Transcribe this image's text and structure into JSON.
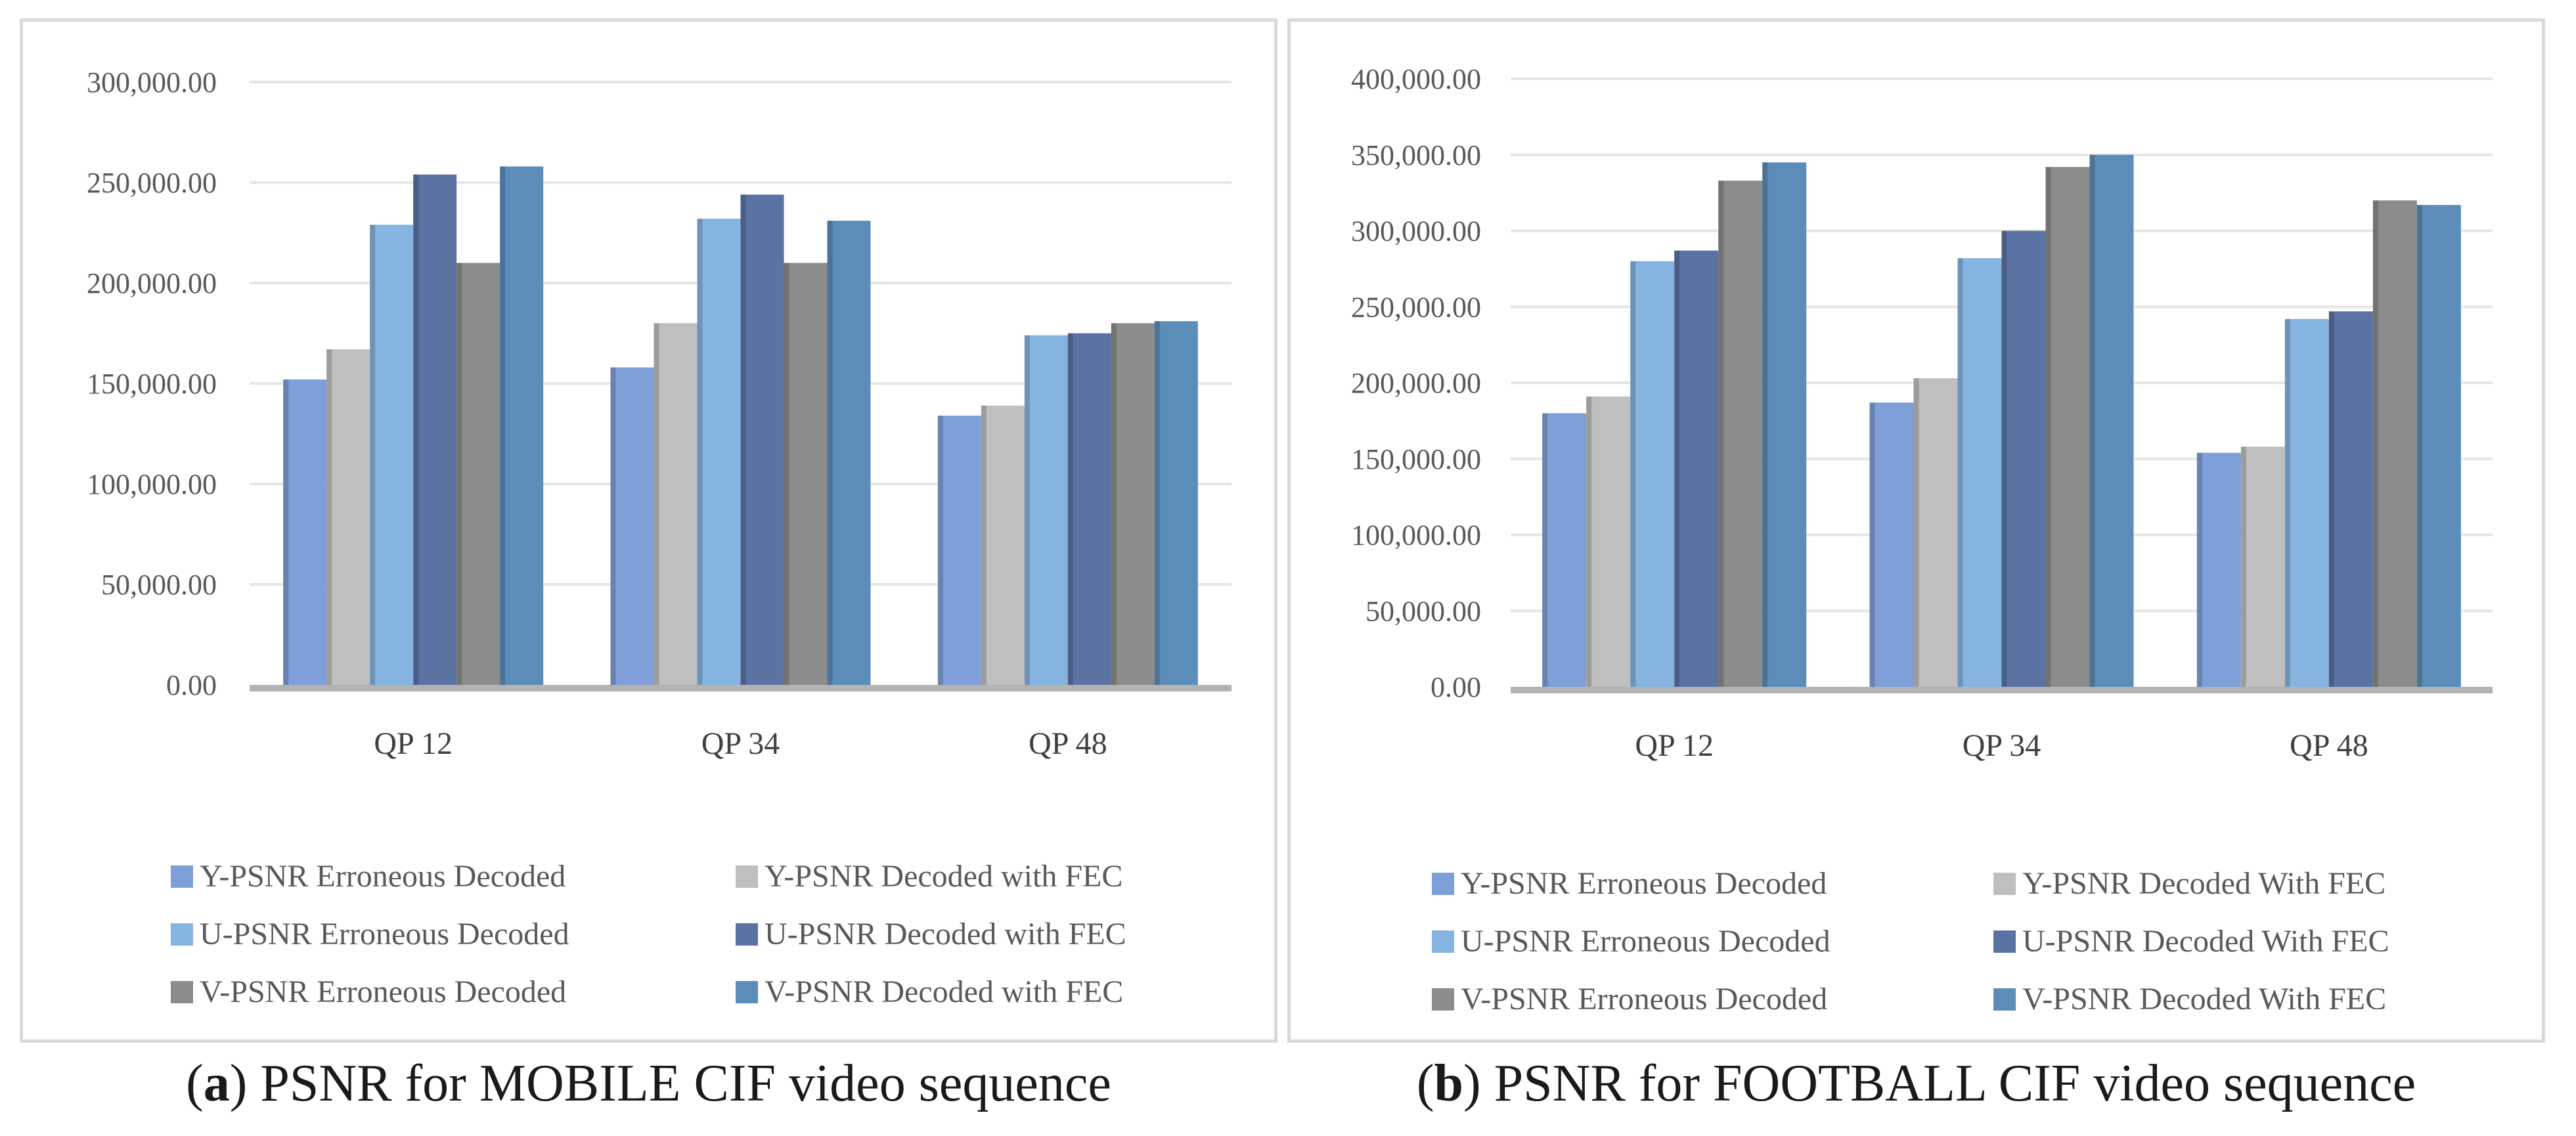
{
  "chart_data": [
    {
      "type": "bar",
      "id": "a",
      "categories": [
        "QP 12",
        "QP 34",
        "QP 48"
      ],
      "ylim": [
        0,
        300000
      ],
      "yticks": [
        "0.00",
        "50,000.00",
        "100,000.00",
        "150,000.00",
        "200,000.00",
        "250,000.00",
        "300,000.00"
      ],
      "series": [
        {
          "name": "Y-PSNR Erroneous Decoded",
          "color": "#7f9fd8",
          "values": [
            152000,
            158000,
            134000
          ]
        },
        {
          "name": "Y-PSNR Decoded with FEC",
          "color": "#bfbfbf",
          "values": [
            167000,
            180000,
            139000
          ]
        },
        {
          "name": "U-PSNR Erroneous Decoded",
          "color": "#86b4e0",
          "values": [
            229000,
            232000,
            174000
          ]
        },
        {
          "name": "U-PSNR Decoded with FEC",
          "color": "#5b73a3",
          "values": [
            254000,
            244000,
            175000
          ]
        },
        {
          "name": "V-PSNR Erroneous Decoded",
          "color": "#8c8c8c",
          "values": [
            210000,
            210000,
            180000
          ]
        },
        {
          "name": "V-PSNR Decoded with FEC",
          "color": "#5c8db8",
          "values": [
            258000,
            231000,
            181000
          ]
        }
      ],
      "caption_label": "a",
      "caption_text": "PSNR for MOBILE CIF video sequence"
    },
    {
      "type": "bar",
      "id": "b",
      "categories": [
        "QP 12",
        "QP 34",
        "QP 48"
      ],
      "ylim": [
        0,
        400000
      ],
      "yticks": [
        "0.00",
        "50,000.00",
        "100,000.00",
        "150,000.00",
        "200,000.00",
        "250,000.00",
        "300,000.00",
        "350,000.00",
        "400,000.00"
      ],
      "series": [
        {
          "name": "Y-PSNR Erroneous Decoded",
          "color": "#7f9fd8",
          "values": [
            180000,
            187000,
            154000
          ]
        },
        {
          "name": "Y-PSNR Decoded With FEC",
          "color": "#bfbfbf",
          "values": [
            191000,
            203000,
            158000
          ]
        },
        {
          "name": "U-PSNR Erroneous Decoded",
          "color": "#86b4e0",
          "values": [
            280000,
            282000,
            242000
          ]
        },
        {
          "name": "U-PSNR Decoded With FEC",
          "color": "#5b73a3",
          "values": [
            287000,
            300000,
            247000
          ]
        },
        {
          "name": "V-PSNR Erroneous Decoded",
          "color": "#8c8c8c",
          "values": [
            333000,
            342000,
            320000
          ]
        },
        {
          "name": "V-PSNR Decoded With FEC",
          "color": "#5c8db8",
          "values": [
            345000,
            350000,
            317000
          ]
        }
      ],
      "caption_label": "b",
      "caption_text": "PSNR for FOOTBALL CIF video sequence"
    }
  ]
}
